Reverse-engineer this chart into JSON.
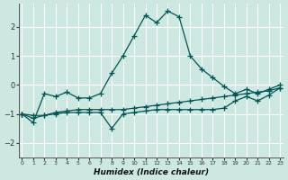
{
  "xlabel": "Humidex (Indice chaleur)",
  "bg_color": "#cce8e0",
  "grid_color": "#ffffff",
  "line_color": "#005555",
  "x": [
    0,
    1,
    2,
    3,
    4,
    5,
    6,
    7,
    8,
    9,
    10,
    11,
    12,
    13,
    14,
    15,
    16,
    17,
    18,
    19,
    20,
    21,
    22,
    23
  ],
  "line1": [
    -1.0,
    -1.3,
    -0.3,
    -0.4,
    -0.25,
    -0.45,
    -0.45,
    -0.3,
    0.4,
    1.0,
    1.7,
    2.4,
    2.15,
    2.55,
    2.35,
    1.0,
    0.55,
    0.25,
    -0.05,
    -0.3,
    -0.15,
    -0.3,
    -0.15,
    0.0
  ],
  "line2": [
    -1.0,
    -1.15,
    -1.05,
    -0.95,
    -0.9,
    -0.85,
    -0.85,
    -0.85,
    -0.85,
    -0.85,
    -0.8,
    -0.75,
    -0.7,
    -0.65,
    -0.6,
    -0.55,
    -0.5,
    -0.45,
    -0.4,
    -0.35,
    -0.3,
    -0.25,
    -0.2,
    -0.1
  ],
  "line3": [
    -1.0,
    -1.05,
    -1.05,
    -1.0,
    -0.95,
    -0.95,
    -0.95,
    -0.95,
    -1.5,
    -1.0,
    -0.95,
    -0.9,
    -0.85,
    -0.85,
    -0.85,
    -0.85,
    -0.85,
    -0.85,
    -0.8,
    -0.55,
    -0.4,
    -0.55,
    -0.35,
    -0.1
  ],
  "ylim": [
    -2.5,
    2.8
  ],
  "xlim": [
    -0.3,
    23.3
  ],
  "yticks": [
    -2,
    -1,
    0,
    1,
    2
  ],
  "xticks": [
    0,
    1,
    2,
    3,
    4,
    5,
    6,
    7,
    8,
    9,
    10,
    11,
    12,
    13,
    14,
    15,
    16,
    17,
    18,
    19,
    20,
    21,
    22,
    23
  ]
}
